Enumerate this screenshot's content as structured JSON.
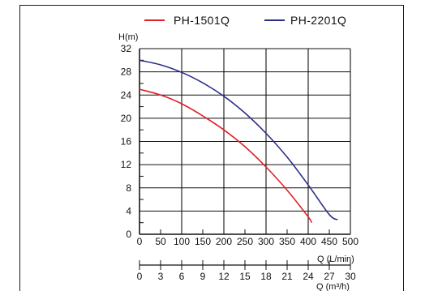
{
  "chart_data": {
    "type": "line",
    "ylabel": "H(m)",
    "xlabel": "Q (L/min)",
    "x2label": "Q (m³/h)",
    "ylim": [
      0,
      32
    ],
    "xlim": [
      0,
      500
    ],
    "grid": true,
    "legend_position": "top",
    "y_ticks": [
      "0",
      "4",
      "8",
      "12",
      "16",
      "20",
      "24",
      "28",
      "32"
    ],
    "x_ticks": [
      "0",
      "50",
      "100",
      "150",
      "200",
      "250",
      "300",
      "350",
      "400",
      "450",
      "500"
    ],
    "x2_ticks": [
      "0",
      "3",
      "6",
      "9",
      "12",
      "15",
      "18",
      "21",
      "24",
      "27",
      "30"
    ],
    "series": [
      {
        "name": "PH-1501Q",
        "color": "#e0202a",
        "x": [
          0,
          50,
          100,
          150,
          200,
          250,
          300,
          350,
          400,
          408
        ],
        "y": [
          25,
          24,
          22.5,
          20.4,
          18,
          15.1,
          11.6,
          7.6,
          3,
          2
        ]
      },
      {
        "name": "PH-2201Q",
        "color": "#2b2f86",
        "x": [
          0,
          50,
          100,
          150,
          200,
          250,
          300,
          350,
          400,
          450,
          470
        ],
        "y": [
          30,
          29.2,
          27.9,
          26.1,
          23.8,
          20.9,
          17.4,
          13.3,
          8.5,
          3.4,
          2.5
        ]
      }
    ]
  }
}
